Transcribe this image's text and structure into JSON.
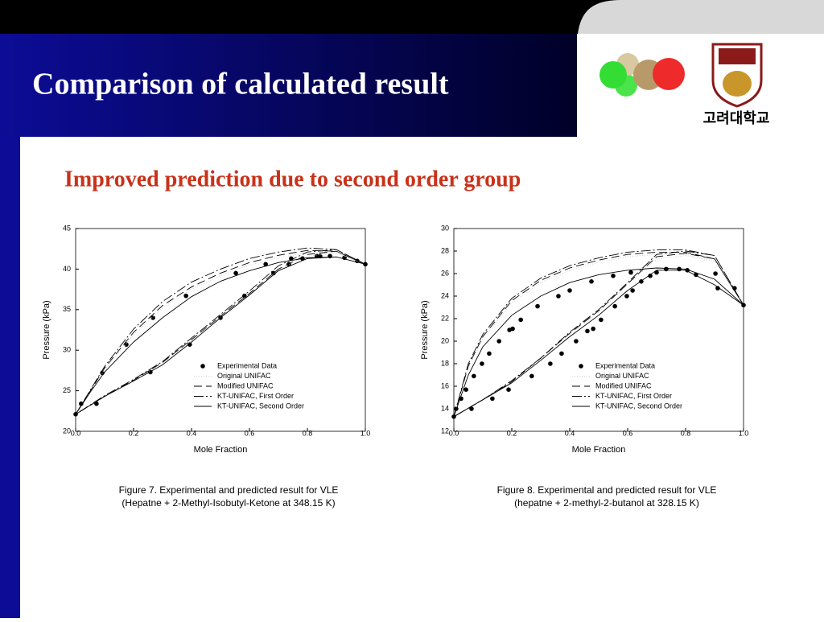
{
  "header": {
    "title": "Comparison of calculated result",
    "logo_text": "고려대학교"
  },
  "subtitle": "Improved prediction due to second order group",
  "chart_data": [
    {
      "type": "line",
      "ylabel": "Pressure (kPa)",
      "xlabel": "Mole Fraction",
      "caption": [
        "Figure 7. Experimental and predicted result for VLE",
        "(Hepatne + 2-Methyl-Isobutyl-Ketone at 348.15 K)"
      ],
      "xlim": [
        0,
        1
      ],
      "ylim": [
        20,
        45
      ],
      "xticks": [
        {
          "value": 0,
          "label": "0.0"
        },
        0.2,
        0.4,
        0.6,
        0.8,
        {
          "value": 1,
          "label": "1.0"
        }
      ],
      "yticks": [
        20,
        25,
        30,
        35,
        40,
        45
      ],
      "series": [
        {
          "name": "Experimental Data",
          "mode": "markers",
          "color": "#000000",
          "x": [
            0,
            0.019,
            0.072,
            0.092,
            0.175,
            0.258,
            0.267,
            0.381,
            0.394,
            0.5,
            0.553,
            0.583,
            0.656,
            0.683,
            0.736,
            0.744,
            0.783,
            0.833,
            0.844,
            0.878,
            0.928,
            0.972,
            1.0
          ],
          "values": [
            22.1,
            23.4,
            23.4,
            27.2,
            30.7,
            27.3,
            34.0,
            36.7,
            30.7,
            34.0,
            39.5,
            36.7,
            40.6,
            39.5,
            40.6,
            41.3,
            41.3,
            41.6,
            41.6,
            41.6,
            41.4,
            41.0,
            40.6
          ]
        },
        {
          "name": "Original UNIFAC",
          "mode": "lines",
          "color": "#d0d0d0",
          "dash": "1,2",
          "x": [
            0,
            0.1,
            0.2,
            0.3,
            0.4,
            0.5,
            0.6,
            0.7,
            0.8,
            0.9,
            1,
            0.9,
            0.8,
            0.7,
            0.6,
            0.5,
            0.4,
            0.3,
            0.2,
            0.1,
            0
          ],
          "values": [
            22.1,
            27.6,
            31.9,
            35.2,
            37.5,
            39.2,
            40.5,
            41.4,
            42.0,
            42.0,
            40.6,
            42.0,
            41.6,
            39.9,
            36.9,
            34.1,
            31.2,
            28.4,
            26.3,
            24.3,
            22.1
          ]
        },
        {
          "name": "Modified UNIFAC",
          "mode": "lines",
          "color": "#000000",
          "dash": "10,5",
          "x": [
            0,
            0.1,
            0.2,
            0.3,
            0.4,
            0.5,
            0.6,
            0.7,
            0.8,
            0.9,
            1,
            0.9,
            0.8,
            0.7,
            0.6,
            0.5,
            0.4,
            0.3,
            0.2,
            0.1,
            0
          ],
          "values": [
            22.1,
            27.8,
            32.2,
            35.5,
            37.8,
            39.5,
            40.8,
            41.7,
            42.3,
            42.2,
            40.6,
            42.2,
            41.8,
            40.0,
            37.0,
            34.2,
            31.3,
            28.5,
            26.3,
            24.3,
            22.1
          ]
        },
        {
          "name": "KT-UNIFAC, First Order",
          "mode": "lines",
          "color": "#000000",
          "dash": "12,3,2,3",
          "x": [
            0,
            0.1,
            0.2,
            0.3,
            0.4,
            0.5,
            0.6,
            0.7,
            0.8,
            0.9,
            1,
            0.9,
            0.8,
            0.7,
            0.6,
            0.5,
            0.4,
            0.3,
            0.2,
            0.1,
            0
          ],
          "values": [
            22.1,
            28.0,
            32.6,
            36.0,
            38.4,
            40.0,
            41.3,
            42.1,
            42.6,
            42.4,
            40.6,
            42.4,
            42.1,
            40.4,
            37.3,
            34.4,
            31.5,
            28.6,
            26.4,
            24.4,
            22.1
          ]
        },
        {
          "name": "KT-UNIFAC, Second Order",
          "mode": "lines",
          "color": "#000000",
          "dash": "none",
          "x": [
            0,
            0.05,
            0.1,
            0.2,
            0.3,
            0.4,
            0.5,
            0.6,
            0.7,
            0.8,
            0.9,
            1,
            0.9,
            0.8,
            0.7,
            0.6,
            0.5,
            0.4,
            0.3,
            0.2,
            0.1,
            0
          ],
          "values": [
            22.1,
            24.8,
            27.3,
            31.0,
            34.0,
            36.6,
            38.5,
            39.8,
            40.8,
            41.4,
            41.5,
            40.6,
            41.5,
            41.3,
            39.8,
            36.8,
            34.0,
            31.0,
            28.2,
            26.2,
            24.3,
            22.1
          ]
        }
      ]
    },
    {
      "type": "line",
      "ylabel": "Pressure (kPa)",
      "xlabel": "Mole Fraction",
      "caption": [
        "Figure 8. Experimental and predicted result for VLE",
        "(hepatne + 2-methyl-2-butanol at 328.15 K)"
      ],
      "xlim": [
        0,
        1
      ],
      "ylim": [
        12,
        30
      ],
      "xticks": [
        {
          "value": 0,
          "label": "0.0"
        },
        0.2,
        0.4,
        0.6,
        0.8,
        {
          "value": 1,
          "label": "1.0"
        }
      ],
      "yticks": [
        12,
        14,
        16,
        18,
        20,
        22,
        24,
        26,
        28,
        30
      ],
      "series": [
        {
          "name": "Experimental Data",
          "mode": "markers",
          "color": "#000000",
          "x": [
            0,
            0.008,
            0.025,
            0.042,
            0.061,
            0.069,
            0.097,
            0.122,
            0.133,
            0.156,
            0.189,
            0.192,
            0.203,
            0.231,
            0.269,
            0.289,
            0.333,
            0.361,
            0.372,
            0.4,
            0.422,
            0.461,
            0.475,
            0.481,
            0.508,
            0.55,
            0.556,
            0.597,
            0.611,
            0.617,
            0.647,
            0.678,
            0.7,
            0.733,
            0.778,
            0.806,
            0.836,
            0.903,
            0.911,
            0.969,
            1.0
          ],
          "values": [
            13.3,
            14.0,
            14.9,
            15.7,
            14.0,
            16.9,
            18.0,
            18.9,
            14.9,
            20.0,
            15.7,
            21.0,
            21.1,
            21.9,
            16.9,
            23.1,
            18.0,
            24.0,
            18.9,
            24.5,
            20.0,
            20.9,
            25.3,
            21.1,
            21.9,
            25.8,
            23.1,
            24.0,
            26.1,
            24.5,
            25.3,
            25.8,
            26.1,
            26.4,
            26.4,
            26.3,
            25.9,
            26.0,
            24.7,
            24.7,
            23.2
          ]
        },
        {
          "name": "Original UNIFAC",
          "mode": "lines",
          "color": "#d0d0d0",
          "dash": "1,2",
          "x": [
            0,
            0.05,
            0.1,
            0.2,
            0.3,
            0.4,
            0.5,
            0.6,
            0.7,
            0.8,
            0.9,
            1,
            0.9,
            0.8,
            0.7,
            0.6,
            0.5,
            0.4,
            0.3,
            0.2,
            0.1,
            0
          ],
          "values": [
            13.3,
            17.6,
            20.2,
            23.4,
            25.2,
            26.3,
            27.0,
            27.5,
            27.7,
            27.7,
            27.1,
            23.2,
            27.1,
            27.6,
            27.3,
            25.0,
            22.6,
            20.6,
            18.4,
            16.4,
            14.8,
            13.3
          ]
        },
        {
          "name": "Modified UNIFAC",
          "mode": "lines",
          "color": "#000000",
          "dash": "10,5",
          "x": [
            0,
            0.05,
            0.1,
            0.2,
            0.3,
            0.4,
            0.5,
            0.6,
            0.7,
            0.8,
            0.9,
            1,
            0.9,
            0.8,
            0.7,
            0.6,
            0.5,
            0.4,
            0.3,
            0.2,
            0.1,
            0
          ],
          "values": [
            13.3,
            17.8,
            20.4,
            23.6,
            25.4,
            26.5,
            27.2,
            27.7,
            27.9,
            27.9,
            27.3,
            23.2,
            27.3,
            27.8,
            27.5,
            25.1,
            22.7,
            20.7,
            18.5,
            16.4,
            14.8,
            13.3
          ]
        },
        {
          "name": "KT-UNIFAC, First Order",
          "mode": "lines",
          "color": "#000000",
          "dash": "12,3,2,3",
          "x": [
            0,
            0.05,
            0.1,
            0.2,
            0.3,
            0.4,
            0.5,
            0.6,
            0.7,
            0.8,
            0.9,
            1,
            0.9,
            0.8,
            0.7,
            0.6,
            0.5,
            0.4,
            0.3,
            0.2,
            0.1,
            0
          ],
          "values": [
            13.3,
            18.0,
            20.6,
            23.8,
            25.6,
            26.7,
            27.4,
            27.9,
            28.1,
            28.1,
            27.6,
            23.2,
            27.6,
            28.0,
            27.7,
            25.2,
            22.8,
            20.8,
            18.5,
            16.5,
            14.8,
            13.3
          ]
        },
        {
          "name": "KT-UNIFAC, Second Order",
          "mode": "lines",
          "color": "#000000",
          "dash": "none",
          "x": [
            0,
            0.05,
            0.1,
            0.2,
            0.3,
            0.4,
            0.5,
            0.6,
            0.7,
            0.8,
            0.9,
            1,
            0.9,
            0.8,
            0.7,
            0.6,
            0.5,
            0.4,
            0.3,
            0.2,
            0.1,
            0
          ],
          "values": [
            13.3,
            17.0,
            19.5,
            22.3,
            24.0,
            25.2,
            25.9,
            26.3,
            26.5,
            26.4,
            25.5,
            23.2,
            25.0,
            26.3,
            26.3,
            24.5,
            22.3,
            20.4,
            18.3,
            16.3,
            14.8,
            13.3
          ]
        }
      ]
    }
  ]
}
